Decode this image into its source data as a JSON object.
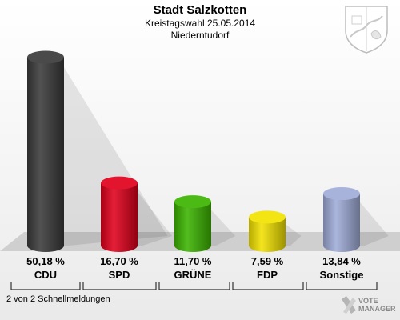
{
  "header": {
    "title": "Stadt Salzkotten",
    "subtitle": "Kreistagswahl 25.05.2014",
    "district": "Niederntudorf"
  },
  "footer": {
    "note": "2 von 2 Schnellmeldungen",
    "logo_text_1": "VOTE",
    "logo_text_2": "MANAGER"
  },
  "chart_data": {
    "type": "bar",
    "title": "Stadt Salzkotten",
    "categories": [
      "CDU",
      "SPD",
      "GRÜNE",
      "FDP",
      "Sonstige"
    ],
    "values": [
      50.18,
      16.7,
      11.7,
      7.59,
      13.84
    ],
    "value_labels": [
      "50,18 %",
      "16,70 %",
      "11,70 %",
      "7,59 %",
      "13,84 %"
    ],
    "colors": [
      "#3a3a3a",
      "#e0001c",
      "#3cb400",
      "#f2e200",
      "#a0acd8"
    ],
    "ylim": [
      0,
      52
    ],
    "grid": false,
    "legend": "none"
  }
}
